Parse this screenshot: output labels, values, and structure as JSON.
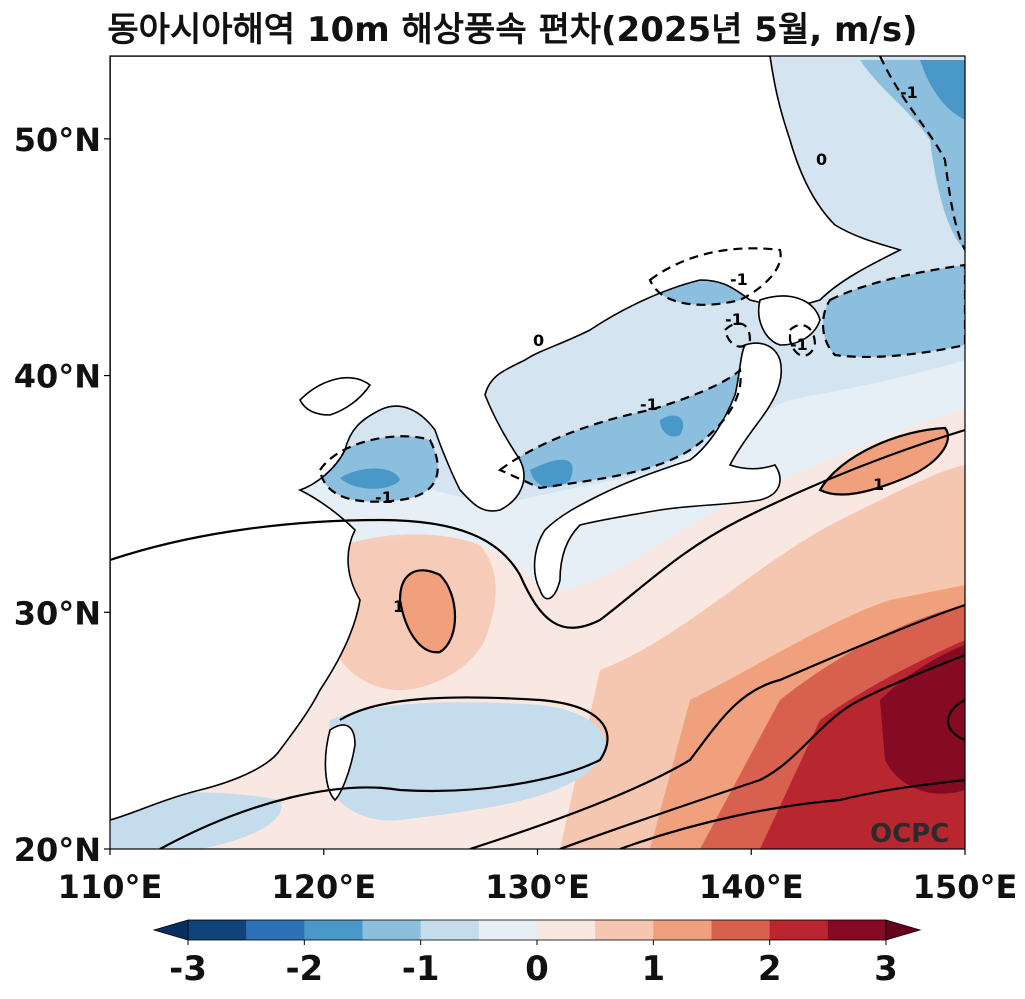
{
  "title": "동아시아해역 10m 해상풍속 편차(2025년 5월, m/s)",
  "watermark": "OCPC",
  "map": {
    "lon_range": [
      110,
      150
    ],
    "lat_range": [
      20,
      53.5
    ],
    "x_ticks": [
      "110°E",
      "120°E",
      "130°E",
      "140°E",
      "150°E"
    ],
    "y_ticks": [
      "20°N",
      "30°N",
      "40°N",
      "50°N"
    ],
    "contour_labels": [
      "-1",
      "-1",
      "-1",
      "-1",
      "-1",
      "-1",
      "0",
      "0",
      "1",
      "1"
    ]
  },
  "colorbar": {
    "ticks": [
      "-3",
      "-2",
      "-1",
      "0",
      "1",
      "2",
      "3"
    ],
    "colors": [
      "#0f437a",
      "#2d72b6",
      "#4a98c8",
      "#8cbfdd",
      "#c4dcec",
      "#e6eff6",
      "#f9e8e2",
      "#f6c7b0",
      "#f0a07c",
      "#d7604e",
      "#b82630",
      "#850b24"
    ]
  }
}
